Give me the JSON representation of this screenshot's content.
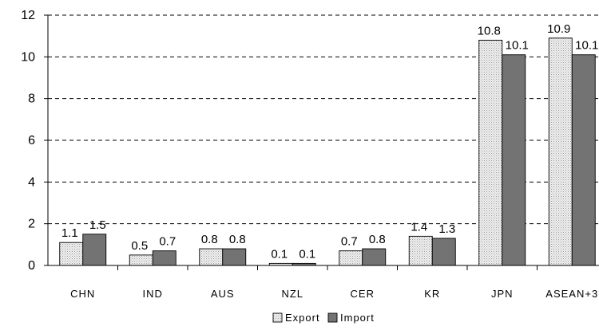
{
  "chart_data": {
    "type": "bar",
    "title": "",
    "xlabel": "",
    "ylabel": "",
    "ylim": [
      0,
      12
    ],
    "yticks": [
      "0",
      "2",
      "4",
      "6",
      "8",
      "10",
      "12"
    ],
    "grid": "horizontal dashed",
    "legend_position": "bottom",
    "categories": [
      "CHN",
      "IND",
      "AUS",
      "NZL",
      "CER",
      "KR",
      "JPN",
      "ASEAN+3"
    ],
    "series": [
      {
        "name": "Export",
        "values": [
          1.1,
          0.5,
          0.8,
          0.1,
          0.7,
          1.4,
          10.8,
          10.9
        ],
        "labels": [
          "1.1",
          "0.5",
          "0.8",
          "0.1",
          "0.7",
          "1.4",
          "10.8",
          "10.9"
        ],
        "color": "#e4e4e4",
        "pattern": "dotted"
      },
      {
        "name": "Import",
        "values": [
          1.5,
          0.7,
          0.8,
          0.1,
          0.8,
          1.3,
          10.1,
          10.1
        ],
        "labels": [
          "1.5",
          "0.7",
          "0.8",
          "0.1",
          "0.8",
          "1.3",
          "10.1",
          "10.1"
        ],
        "color": "#737373",
        "pattern": "solid"
      }
    ]
  }
}
